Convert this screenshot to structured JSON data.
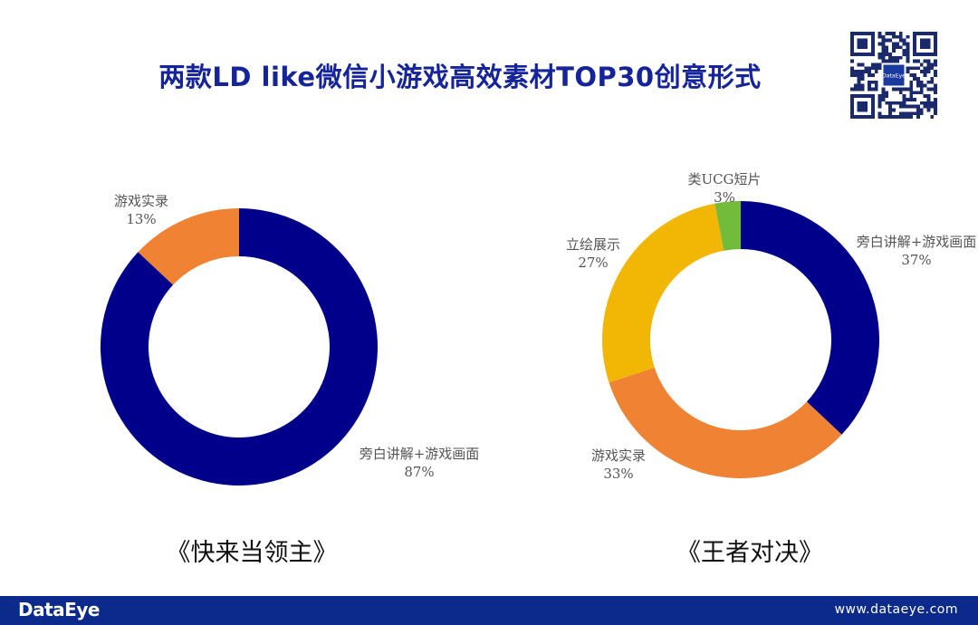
{
  "header": {
    "title": "两款LD like微信小游戏高效素材TOP30创意形式"
  },
  "qr": {
    "logo_text": "DataEye"
  },
  "colors": {
    "navy": "#00008b",
    "orange": "#ef8333",
    "yellow": "#f2b705",
    "green": "#72bb3b",
    "title": "#15249a",
    "footer": "#0c2a8c"
  },
  "chart_data": [
    {
      "type": "pie",
      "variant": "donut",
      "caption": "《快来当领主》",
      "slices": [
        {
          "label": "游戏实录",
          "value": 13,
          "value_label": "13%",
          "color": "#ef8333"
        },
        {
          "label": "旁白讲解+游戏画面",
          "value": 87,
          "value_label": "87%",
          "color": "#00008b"
        }
      ]
    },
    {
      "type": "pie",
      "variant": "donut",
      "caption": "《王者对决》",
      "slices": [
        {
          "label": "旁白讲解+游戏画面",
          "value": 37,
          "value_label": "37%",
          "color": "#00008b"
        },
        {
          "label": "游戏实录",
          "value": 33,
          "value_label": "33%",
          "color": "#ef8333"
        },
        {
          "label": "立绘展示",
          "value": 27,
          "value_label": "27%",
          "color": "#f2b705"
        },
        {
          "label": "类UCG短片",
          "value": 3,
          "value_label": "3%",
          "color": "#72bb3b"
        }
      ]
    }
  ],
  "footer": {
    "brand": "DataEye",
    "url": "www.dataeye.com"
  }
}
